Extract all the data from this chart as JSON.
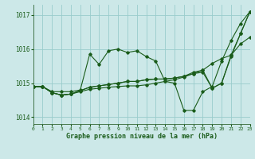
{
  "xlabel": "Graphe pression niveau de la mer (hPa)",
  "xlim": [
    0,
    23
  ],
  "ylim": [
    1013.8,
    1017.3
  ],
  "yticks": [
    1014,
    1015,
    1016,
    1017
  ],
  "xticks": [
    0,
    1,
    2,
    3,
    4,
    5,
    6,
    7,
    8,
    9,
    10,
    11,
    12,
    13,
    14,
    15,
    16,
    17,
    18,
    19,
    20,
    21,
    22,
    23
  ],
  "bg_color": "#cce8e8",
  "grid_color": "#99cccc",
  "line_color": "#1a5c1a",
  "series": [
    [
      1014.9,
      1014.9,
      1014.75,
      1014.75,
      1014.75,
      1014.8,
      1015.85,
      1015.55,
      1015.95,
      1016.0,
      1015.9,
      1015.95,
      1015.78,
      1015.65,
      1015.05,
      1015.0,
      1014.2,
      1014.2,
      1014.75,
      1014.9,
      1015.65,
      1016.25,
      1016.75,
      1017.1
    ],
    [
      1014.9,
      1014.9,
      1014.72,
      1014.65,
      1014.68,
      1014.75,
      1014.82,
      1014.85,
      1014.88,
      1014.9,
      1014.92,
      1014.92,
      1014.95,
      1015.0,
      1015.05,
      1015.1,
      1015.18,
      1015.28,
      1015.38,
      1015.58,
      1015.72,
      1015.82,
      1016.15,
      1016.35
    ],
    [
      1014.9,
      1014.9,
      1014.72,
      1014.65,
      1014.68,
      1014.78,
      1014.88,
      1014.92,
      1014.96,
      1015.0,
      1015.05,
      1015.05,
      1015.1,
      1015.12,
      1015.12,
      1015.15,
      1015.2,
      1015.28,
      1015.32,
      1014.85,
      1015.0,
      1015.82,
      1016.45,
      1017.1
    ],
    [
      1014.9,
      1014.9,
      1014.72,
      1014.65,
      1014.68,
      1014.78,
      1014.88,
      1014.92,
      1014.96,
      1015.0,
      1015.05,
      1015.05,
      1015.1,
      1015.12,
      1015.12,
      1015.15,
      1015.2,
      1015.32,
      1015.38,
      1014.85,
      1015.0,
      1015.78,
      1016.45,
      1017.1
    ]
  ]
}
